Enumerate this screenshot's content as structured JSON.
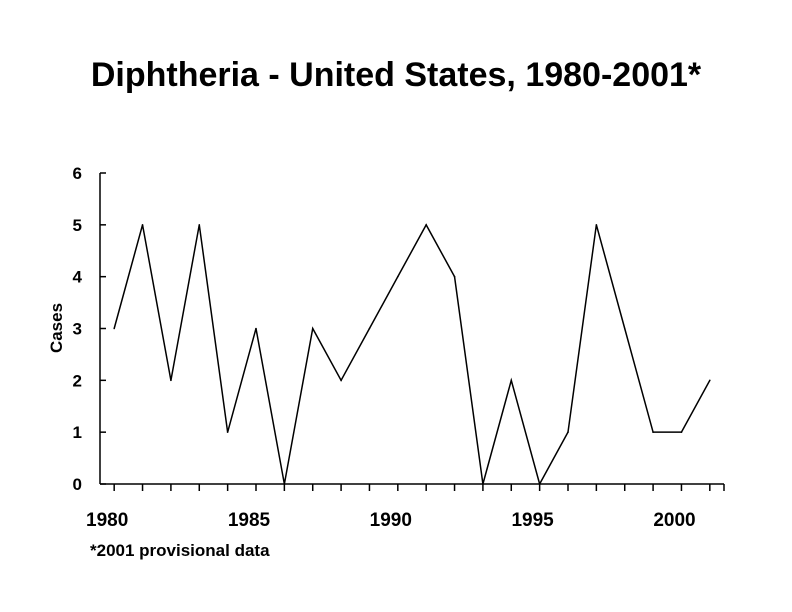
{
  "chart_data": {
    "type": "line",
    "title": "Diphtheria - United States, 1980-2001*",
    "ylabel": "Cases",
    "xlabel": "",
    "x": [
      1980,
      1981,
      1982,
      1983,
      1984,
      1985,
      1986,
      1987,
      1988,
      1989,
      1990,
      1991,
      1992,
      1993,
      1994,
      1995,
      1996,
      1997,
      1998,
      1999,
      2000,
      2001
    ],
    "series": [
      {
        "values": [
          3,
          5,
          2,
          5,
          1,
          3,
          0,
          3,
          2,
          3,
          4,
          5,
          4,
          0,
          2,
          0,
          1,
          5,
          3,
          1,
          1,
          2
        ]
      }
    ],
    "yticks": [
      "0",
      "1",
      "2",
      "3",
      "4",
      "5",
      "6"
    ],
    "xtick_labels": [
      "1980",
      "1985",
      "1990",
      "1995",
      "2000"
    ],
    "ylim": [
      0,
      6
    ],
    "xlim": [
      1979.5,
      2001.5
    ],
    "grid": false,
    "footnote": "*2001 provisional data",
    "line_color": "#000000"
  }
}
